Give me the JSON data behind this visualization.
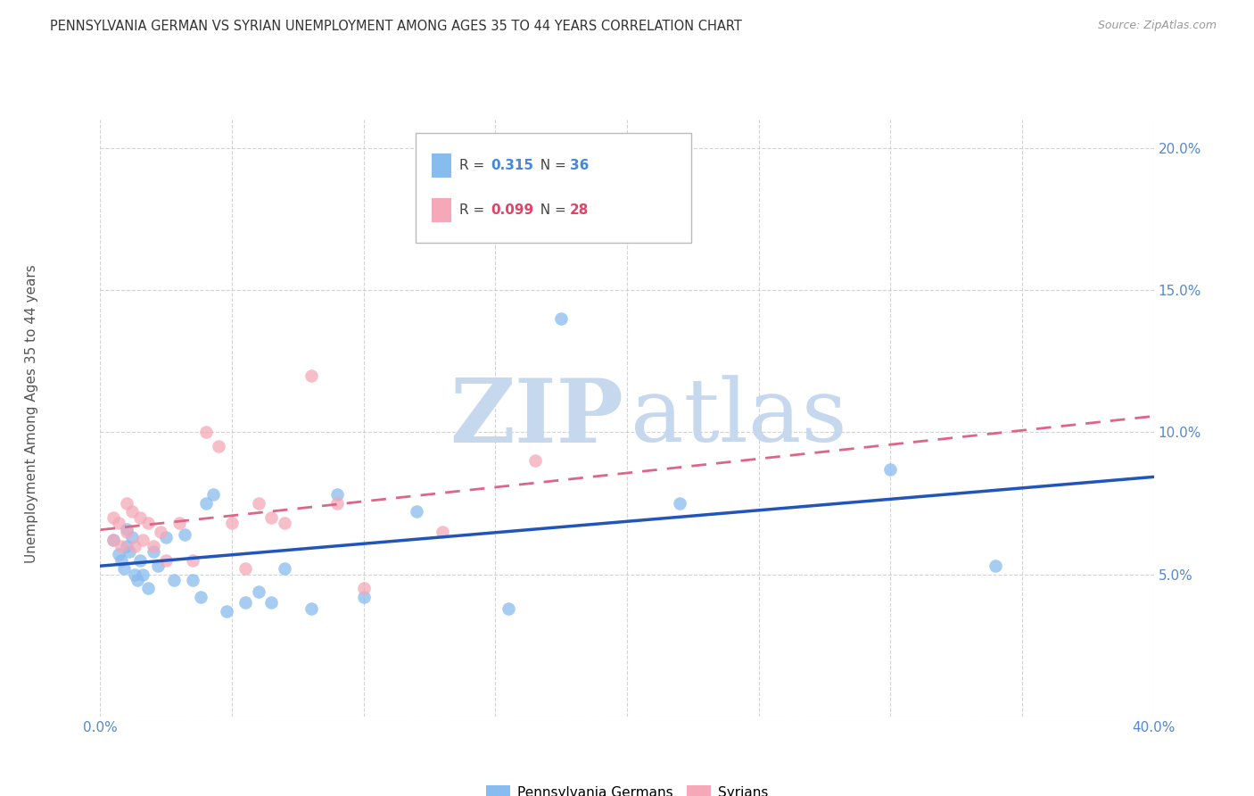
{
  "title": "PENNSYLVANIA GERMAN VS SYRIAN UNEMPLOYMENT AMONG AGES 35 TO 44 YEARS CORRELATION CHART",
  "source": "Source: ZipAtlas.com",
  "ylabel": "Unemployment Among Ages 35 to 44 years",
  "xmin": 0.0,
  "xmax": 0.4,
  "ymin": 0.0,
  "ymax": 0.21,
  "grid_color": "#c8c8c8",
  "background_color": "#ffffff",
  "blue_color": "#88bbee",
  "pink_color": "#f4a8b8",
  "blue_line_color": "#2255bb",
  "pink_line_color": "#dd6688",
  "blue_text_color": "#4488dd",
  "pink_text_color": "#dd4466",
  "axis_text_color": "#5588cc",
  "title_color": "#333333",
  "source_color": "#999999",
  "ylabel_color": "#555555",
  "watermark_zip_color": "#c5d8ed",
  "watermark_atlas_color": "#c5d8ed",
  "pa_german_x": [
    0.005,
    0.007,
    0.008,
    0.009,
    0.01,
    0.01,
    0.011,
    0.012,
    0.013,
    0.014,
    0.015,
    0.016,
    0.018,
    0.02,
    0.022,
    0.025,
    0.028,
    0.032,
    0.035,
    0.038,
    0.04,
    0.043,
    0.048,
    0.055,
    0.06,
    0.065,
    0.07,
    0.08,
    0.09,
    0.1,
    0.12,
    0.155,
    0.175,
    0.22,
    0.3,
    0.34
  ],
  "pa_german_y": [
    0.062,
    0.057,
    0.055,
    0.052,
    0.066,
    0.06,
    0.058,
    0.063,
    0.05,
    0.048,
    0.055,
    0.05,
    0.045,
    0.058,
    0.053,
    0.063,
    0.048,
    0.064,
    0.048,
    0.042,
    0.075,
    0.078,
    0.037,
    0.04,
    0.044,
    0.04,
    0.052,
    0.038,
    0.078,
    0.042,
    0.072,
    0.038,
    0.14,
    0.075,
    0.087,
    0.053
  ],
  "syrian_x": [
    0.005,
    0.005,
    0.007,
    0.008,
    0.01,
    0.01,
    0.012,
    0.013,
    0.015,
    0.016,
    0.018,
    0.02,
    0.023,
    0.025,
    0.03,
    0.035,
    0.04,
    0.045,
    0.05,
    0.055,
    0.06,
    0.065,
    0.07,
    0.08,
    0.09,
    0.1,
    0.13,
    0.165
  ],
  "syrian_y": [
    0.07,
    0.062,
    0.068,
    0.06,
    0.075,
    0.065,
    0.072,
    0.06,
    0.07,
    0.062,
    0.068,
    0.06,
    0.065,
    0.055,
    0.068,
    0.055,
    0.1,
    0.095,
    0.068,
    0.052,
    0.075,
    0.07,
    0.068,
    0.12,
    0.075,
    0.045,
    0.065,
    0.09
  ]
}
